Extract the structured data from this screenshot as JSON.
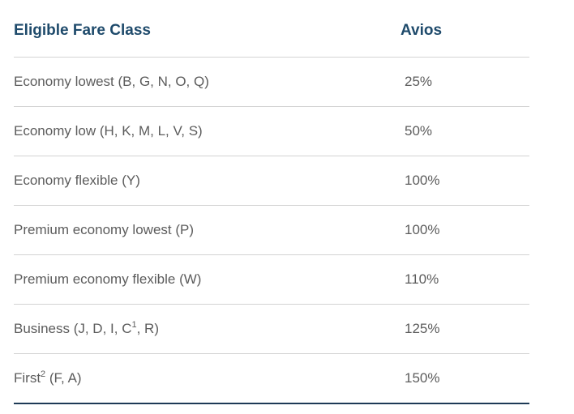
{
  "table": {
    "headers": {
      "fare_class": "Eligible Fare Class",
      "avios": "Avios"
    },
    "rows": [
      {
        "fare_class": "Economy lowest (B, G, N, O, Q)",
        "avios": "25%"
      },
      {
        "fare_class": "Economy low (H, K, M, L, V, S)",
        "avios": "50%"
      },
      {
        "fare_class": "Economy flexible (Y)",
        "avios": "100%"
      },
      {
        "fare_class": "Premium economy lowest (P)",
        "avios": "100%"
      },
      {
        "fare_class": "Premium economy flexible (W)",
        "avios": "110%"
      },
      {
        "fare_class_prefix": "Business (J, D, I, C",
        "fare_class_sup": "1",
        "fare_class_suffix": ", R)",
        "avios": "125%"
      },
      {
        "fare_class_prefix": "First",
        "fare_class_sup": "2",
        "fare_class_suffix": " (F, A)",
        "avios": "150%"
      }
    ]
  },
  "colors": {
    "header_text": "#1e4a6b",
    "body_text": "#5c5c5c",
    "divider": "#d3d3d3",
    "bottom_rule": "#1e3a56"
  }
}
